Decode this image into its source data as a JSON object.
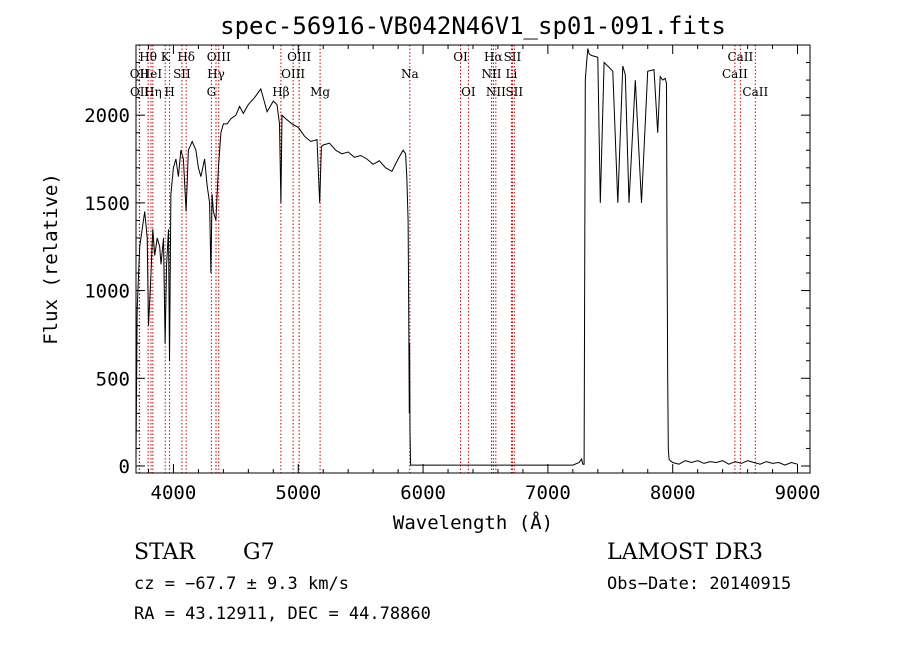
{
  "chart_data": {
    "type": "line",
    "title": "spec-56916-VB042N46V1_sp01-091.fits",
    "xlabel": "Wavelength (Å)",
    "ylabel": "Flux (relative)",
    "xlim": [
      3700,
      9100
    ],
    "ylim": [
      -40,
      2400
    ],
    "xticks": [
      4000,
      5000,
      6000,
      7000,
      8000,
      9000
    ],
    "yticks": [
      0,
      500,
      1000,
      1500,
      2000
    ],
    "grid": false,
    "series": [
      {
        "name": "flux",
        "x": [
          3700,
          3710,
          3730,
          3750,
          3770,
          3790,
          3800,
          3820,
          3835,
          3850,
          3870,
          3890,
          3900,
          3920,
          3933,
          3945,
          3960,
          3968,
          3980,
          4000,
          4020,
          4040,
          4060,
          4080,
          4101,
          4120,
          4150,
          4180,
          4200,
          4220,
          4250,
          4270,
          4290,
          4300,
          4310,
          4320,
          4340,
          4360,
          4380,
          4400,
          4430,
          4460,
          4500,
          4530,
          4560,
          4600,
          4650,
          4700,
          4750,
          4800,
          4830,
          4850,
          4861,
          4870,
          4900,
          4950,
          5000,
          5050,
          5100,
          5150,
          5172,
          5185,
          5200,
          5250,
          5300,
          5350,
          5400,
          5450,
          5500,
          5550,
          5600,
          5650,
          5700,
          5750,
          5800,
          5840,
          5860,
          5870,
          5880,
          5885,
          5890,
          5892,
          5895,
          5900,
          5910,
          5950,
          6000,
          6500,
          7000,
          7200,
          7250,
          7270,
          7280,
          7290,
          7300,
          7310,
          7320,
          7330,
          7350,
          7400,
          7420,
          7450,
          7480,
          7520,
          7560,
          7600,
          7620,
          7650,
          7700,
          7750,
          7800,
          7850,
          7880,
          7900,
          7920,
          7940,
          7950,
          7955,
          7960,
          7965,
          7970,
          7980,
          8000,
          8050,
          8100,
          8150,
          8200,
          8250,
          8300,
          8350,
          8400,
          8450,
          8500,
          8550,
          8600,
          8650,
          8700,
          8750,
          8800,
          8850,
          8900,
          8950,
          9000
        ],
        "y": [
          40,
          900,
          1250,
          1350,
          1450,
          1300,
          800,
          1100,
          1350,
          1200,
          1300,
          1250,
          1150,
          1300,
          700,
          1150,
          1350,
          600,
          1550,
          1700,
          1750,
          1650,
          1800,
          1750,
          1450,
          1800,
          1850,
          1800,
          1700,
          1650,
          1750,
          1600,
          1500,
          1100,
          1550,
          1450,
          1400,
          1700,
          1900,
          1950,
          1950,
          1980,
          2000,
          2050,
          2010,
          2060,
          2100,
          2150,
          2020,
          2080,
          2060,
          1950,
          1500,
          2000,
          1980,
          1950,
          1930,
          1880,
          1850,
          1860,
          1500,
          1820,
          1830,
          1840,
          1800,
          1780,
          1790,
          1760,
          1770,
          1750,
          1720,
          1740,
          1700,
          1680,
          1750,
          1800,
          1780,
          1650,
          1400,
          900,
          300,
          700,
          200,
          5,
          5,
          5,
          5,
          5,
          5,
          5,
          20,
          40,
          10,
          10,
          2200,
          2300,
          2380,
          2350,
          2340,
          2330,
          1500,
          2300,
          2280,
          2250,
          1500,
          2280,
          2230,
          1500,
          2200,
          1500,
          2250,
          2260,
          1900,
          2220,
          2200,
          2210,
          2180,
          1200,
          500,
          100,
          40,
          30,
          20,
          10,
          30,
          20,
          30,
          15,
          25,
          20,
          30,
          10,
          25,
          15,
          30,
          20,
          10,
          25,
          15,
          20,
          5,
          20,
          10
        ]
      }
    ],
    "lines": [
      {
        "label": "Hθ",
        "x": 3797,
        "row": 0
      },
      {
        "label": "OII",
        "x": 3727,
        "row": 1
      },
      {
        "label": "OII",
        "x": 3729,
        "row": 2
      },
      {
        "label": "HeI",
        "x": 3820,
        "row": 1
      },
      {
        "label": "Hη",
        "x": 3835,
        "row": 2
      },
      {
        "label": "K",
        "x": 3934,
        "row": 0
      },
      {
        "label": "SII",
        "x": 4068,
        "row": 1
      },
      {
        "label": "H",
        "x": 3969,
        "row": 2
      },
      {
        "label": "Hδ",
        "x": 4102,
        "row": 0
      },
      {
        "label": "OIII",
        "x": 4363,
        "row": 0
      },
      {
        "label": "Hγ",
        "x": 4341,
        "row": 1
      },
      {
        "label": "G",
        "x": 4304,
        "row": 2
      },
      {
        "label": "Hβ",
        "x": 4861,
        "row": 2
      },
      {
        "label": "OIII",
        "x": 5007,
        "row": 0
      },
      {
        "label": "OIII",
        "x": 4959,
        "row": 1
      },
      {
        "label": "Mg",
        "x": 5175,
        "row": 2
      },
      {
        "label": "Na",
        "x": 5894,
        "row": 1
      },
      {
        "label": "OI",
        "x": 6300,
        "row": 0
      },
      {
        "label": "OI",
        "x": 6363,
        "row": 2
      },
      {
        "label": "Hα",
        "x": 6563,
        "row": 0
      },
      {
        "label": "SII",
        "x": 6716,
        "row": 0
      },
      {
        "label": "NII",
        "x": 6548,
        "row": 1
      },
      {
        "label": "Li",
        "x": 6708,
        "row": 1
      },
      {
        "label": "NII",
        "x": 6583,
        "row": 2
      },
      {
        "label": "SII",
        "x": 6731,
        "row": 2
      },
      {
        "label": "CaII",
        "x": 8542,
        "row": 0
      },
      {
        "label": "CaII",
        "x": 8498,
        "row": 1
      },
      {
        "label": "CaII",
        "x": 8662,
        "row": 2
      }
    ],
    "colors": {
      "spectrum": "#000000",
      "line_marker": "#cc0000"
    }
  },
  "info": {
    "class": "STAR",
    "subclass": "G7",
    "survey": "LAMOST DR3",
    "cz": "cz = −67.7 ± 9.3 km/s",
    "obs_date": "Obs−Date: 20140915",
    "radec": "RA =  43.12911, DEC =  44.78860"
  }
}
